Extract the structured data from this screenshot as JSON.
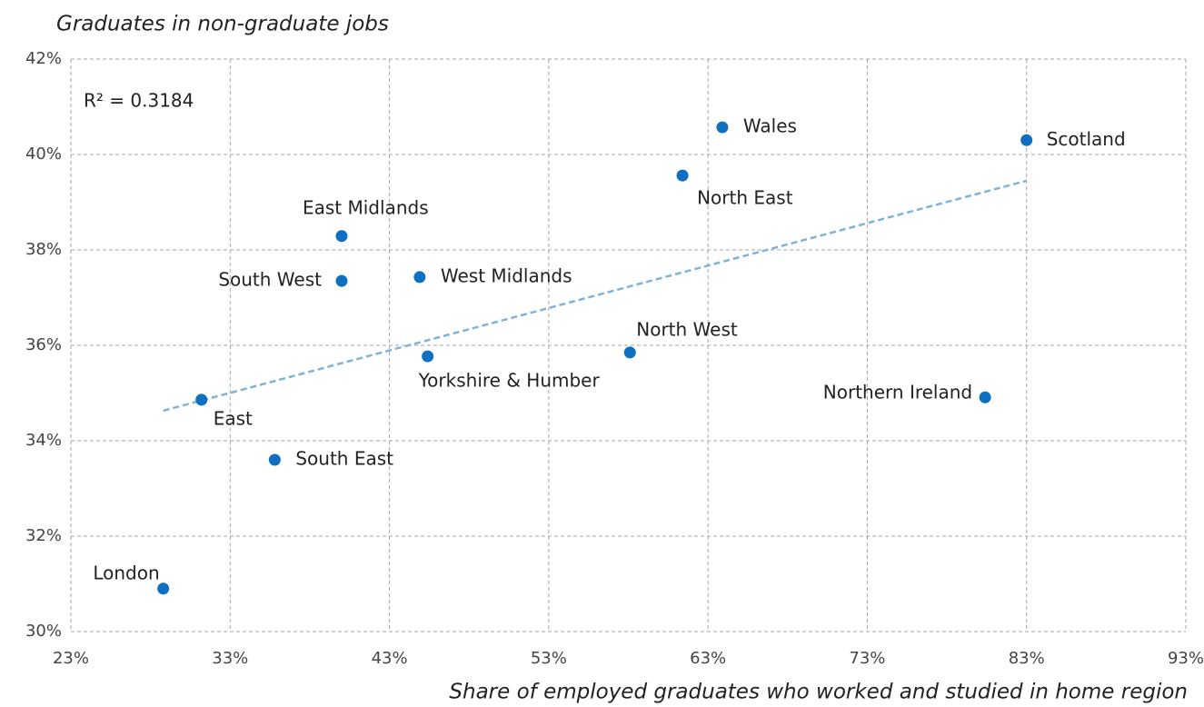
{
  "chart_data": {
    "type": "scatter",
    "y_title": "Graduates in non-graduate jobs",
    "x_title": "Share of employed graduates who worked and studied in home region",
    "annotation": "R² = 0.3184",
    "color": "#0f6fc0",
    "trend_color": "#7fb3d9",
    "categories": [
      "London",
      "East",
      "South East",
      "South West",
      "East Midlands",
      "West Midlands",
      "Yorkshire & Humber",
      "North West",
      "North East",
      "Wales",
      "Scotland",
      "Northern Ireland"
    ],
    "x": [
      28.8,
      31.2,
      35.8,
      40.0,
      40.0,
      44.9,
      45.4,
      58.1,
      61.4,
      63.9,
      83.0,
      80.4
    ],
    "values": [
      30.9,
      34.86,
      33.6,
      37.35,
      38.29,
      37.43,
      35.77,
      35.85,
      39.56,
      40.57,
      40.3,
      34.91
    ],
    "trendline": {
      "x": [
        28.8,
        83.0
      ],
      "y": [
        34.63,
        39.45
      ]
    },
    "xlim": [
      23,
      93
    ],
    "xticks": [
      {
        "value": 23,
        "label": "23%"
      },
      {
        "value": 33,
        "label": "33%"
      },
      {
        "value": 43,
        "label": "43%"
      },
      {
        "value": 53,
        "label": "53%"
      },
      {
        "value": 63,
        "label": "63%"
      },
      {
        "value": 73,
        "label": "73%"
      },
      {
        "value": 83,
        "label": "83%"
      },
      {
        "value": 93,
        "label": "93%"
      }
    ],
    "ylim": [
      30,
      42
    ],
    "yticks": [
      {
        "value": 30,
        "label": "30%"
      },
      {
        "value": 32,
        "label": "32%"
      },
      {
        "value": 34,
        "label": "34%"
      },
      {
        "value": 36,
        "label": "36%"
      },
      {
        "value": 38,
        "label": "38%"
      },
      {
        "value": 40,
        "label": "40%"
      },
      {
        "value": 42,
        "label": "42%"
      }
    ],
    "grid": true
  }
}
